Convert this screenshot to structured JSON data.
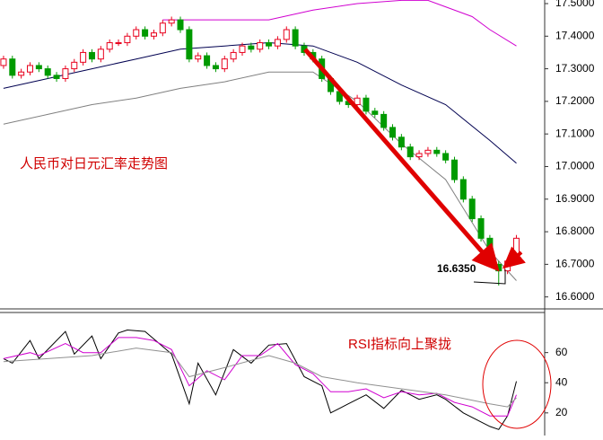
{
  "chart_data": [
    {
      "type": "candlestick",
      "title": "人民币对日元汇率走势图",
      "annotations": [
        {
          "text": "16.6350"
        }
      ],
      "up_color": "#e8001c",
      "down_color": "#009a00",
      "x": [
        0,
        1,
        2,
        3,
        4,
        5,
        6,
        7,
        8,
        9,
        10,
        11,
        12,
        13,
        14,
        15,
        16,
        17,
        18,
        19,
        20,
        21,
        22,
        23,
        24,
        25,
        26,
        27,
        28,
        29,
        30,
        31,
        32,
        33,
        34,
        35,
        36,
        37,
        38,
        39,
        40,
        41,
        42,
        43,
        44,
        45,
        46,
        47,
        48,
        49,
        50,
        51,
        52,
        53,
        54,
        55,
        56,
        57,
        58
      ],
      "open": [
        17.31,
        17.33,
        17.28,
        17.29,
        17.31,
        17.3,
        17.28,
        17.27,
        17.3,
        17.32,
        17.35,
        17.33,
        17.36,
        17.38,
        17.38,
        17.4,
        17.42,
        17.4,
        17.41,
        17.44,
        17.45,
        17.42,
        17.33,
        17.34,
        17.31,
        17.3,
        17.33,
        17.35,
        17.37,
        17.36,
        17.38,
        17.37,
        17.39,
        17.42,
        17.37,
        17.35,
        17.33,
        17.27,
        17.23,
        17.2,
        17.19,
        17.21,
        17.17,
        17.16,
        17.12,
        17.09,
        17.06,
        17.03,
        17.04,
        17.05,
        17.04,
        17.02,
        16.96,
        16.9,
        16.84,
        16.78,
        16.7,
        16.68,
        16.71
      ],
      "high": [
        17.34,
        17.34,
        17.3,
        17.32,
        17.32,
        17.31,
        17.29,
        17.31,
        17.33,
        17.36,
        17.36,
        17.37,
        17.39,
        17.39,
        17.41,
        17.43,
        17.43,
        17.42,
        17.45,
        17.46,
        17.46,
        17.43,
        17.35,
        17.35,
        17.32,
        17.34,
        17.36,
        17.38,
        17.38,
        17.39,
        17.39,
        17.4,
        17.43,
        17.43,
        17.38,
        17.36,
        17.34,
        17.28,
        17.24,
        17.21,
        17.22,
        17.22,
        17.18,
        17.17,
        17.13,
        17.1,
        17.07,
        17.05,
        17.06,
        17.06,
        17.05,
        17.03,
        16.97,
        16.91,
        16.85,
        16.79,
        16.71,
        16.72,
        16.79
      ],
      "low": [
        17.3,
        17.27,
        17.27,
        17.28,
        17.29,
        17.27,
        17.26,
        17.26,
        17.29,
        17.31,
        17.32,
        17.32,
        17.35,
        17.37,
        17.37,
        17.39,
        17.39,
        17.39,
        17.4,
        17.43,
        17.41,
        17.32,
        17.32,
        17.3,
        17.29,
        17.29,
        17.32,
        17.34,
        17.35,
        17.35,
        17.36,
        17.36,
        17.38,
        17.36,
        17.34,
        17.32,
        17.26,
        17.22,
        17.19,
        17.18,
        17.18,
        17.16,
        17.15,
        17.11,
        17.08,
        17.05,
        17.02,
        17.02,
        17.03,
        17.03,
        17.01,
        16.95,
        16.89,
        16.83,
        16.77,
        16.69,
        16.635,
        16.67,
        16.7
      ],
      "close": [
        17.33,
        17.28,
        17.29,
        17.31,
        17.3,
        17.28,
        17.27,
        17.3,
        17.32,
        17.35,
        17.33,
        17.36,
        17.38,
        17.38,
        17.4,
        17.42,
        17.4,
        17.41,
        17.44,
        17.45,
        17.42,
        17.33,
        17.34,
        17.31,
        17.3,
        17.33,
        17.35,
        17.37,
        17.36,
        17.38,
        17.37,
        17.39,
        17.42,
        17.37,
        17.35,
        17.33,
        17.27,
        17.23,
        17.2,
        17.19,
        17.21,
        17.17,
        17.16,
        17.12,
        17.09,
        17.06,
        17.03,
        17.04,
        17.05,
        17.04,
        17.02,
        16.96,
        16.9,
        16.84,
        16.78,
        16.7,
        16.68,
        16.71,
        16.78
      ],
      "lines": [
        {
          "color": "#d000d0",
          "x": [
            18,
            25,
            30,
            35,
            40,
            45,
            48,
            50,
            53,
            55,
            58
          ],
          "values": [
            17.45,
            17.45,
            17.45,
            17.48,
            17.5,
            17.51,
            17.51,
            17.49,
            17.46,
            17.42,
            17.37
          ]
        },
        {
          "color": "#000050",
          "x": [
            0,
            5,
            10,
            15,
            20,
            25,
            30,
            35,
            40,
            45,
            50,
            55,
            58
          ],
          "values": [
            17.24,
            17.27,
            17.3,
            17.33,
            17.36,
            17.37,
            17.38,
            17.37,
            17.32,
            17.25,
            17.19,
            17.08,
            17.01
          ]
        },
        {
          "color": "#808080",
          "x": [
            0,
            5,
            10,
            15,
            20,
            25,
            30,
            35,
            40,
            45,
            50,
            55,
            58
          ],
          "values": [
            17.13,
            17.16,
            17.19,
            17.21,
            17.24,
            17.26,
            17.29,
            17.29,
            17.2,
            17.07,
            16.96,
            16.74,
            16.65
          ]
        }
      ],
      "xlim": [
        -0.4,
        61.2
      ],
      "ylim": [
        16.566,
        17.511
      ],
      "yticks": [
        {
          "value": 16.6,
          "label": "16.6000"
        },
        {
          "value": 16.7,
          "label": "16.7000"
        },
        {
          "value": 16.8,
          "label": "16.8000"
        },
        {
          "value": 16.9,
          "label": "16.9000"
        },
        {
          "value": 17.0,
          "label": "17.0000"
        },
        {
          "value": 17.1,
          "label": "17.1000"
        },
        {
          "value": 17.2,
          "label": "17.2000"
        },
        {
          "value": 17.3,
          "label": "17.3000"
        },
        {
          "value": 17.4,
          "label": "17.4000"
        },
        {
          "value": 17.5,
          "label": "17.5000"
        }
      ]
    },
    {
      "type": "line",
      "annotations": [
        {
          "text": "RSI指标向上聚拢"
        }
      ],
      "series": [
        {
          "color": "#000000",
          "x": [
            0,
            1,
            3,
            4,
            7,
            8,
            10,
            11,
            13,
            14,
            16,
            19,
            21,
            22,
            24,
            26,
            28,
            30,
            32,
            34,
            36,
            37,
            39,
            41,
            43,
            45,
            47,
            49,
            50,
            52,
            55,
            56,
            57,
            58
          ],
          "values": [
            56,
            53,
            68,
            56,
            74,
            59,
            71,
            56,
            73,
            75,
            74,
            59,
            26,
            53,
            32,
            62,
            53,
            65,
            66,
            44,
            38,
            20,
            26,
            32,
            23,
            35,
            29,
            32,
            29,
            20,
            11,
            9,
            18,
            41
          ]
        },
        {
          "color": "#d000d0",
          "x": [
            0,
            3,
            4,
            7,
            9,
            11,
            13,
            15,
            17,
            19,
            21,
            23,
            25,
            27,
            29,
            31,
            33,
            35,
            37,
            39,
            41,
            43,
            45,
            47,
            49,
            51,
            53,
            55,
            57,
            58
          ],
          "values": [
            56,
            60,
            58,
            66,
            60,
            60,
            70,
            70,
            68,
            62,
            38,
            48,
            42,
            58,
            58,
            66,
            52,
            46,
            34,
            34,
            36,
            30,
            34,
            32,
            33,
            27,
            24,
            18,
            18,
            32
          ]
        },
        {
          "color": "#909090",
          "x": [
            0,
            5,
            10,
            15,
            19,
            21,
            25,
            30,
            33,
            36,
            40,
            45,
            50,
            55,
            57,
            58
          ],
          "values": [
            54,
            56,
            58,
            63,
            60,
            44,
            50,
            58,
            53,
            44,
            40,
            36,
            32,
            26,
            24,
            30
          ]
        }
      ],
      "xlim": [
        -0.4,
        61.2
      ],
      "ylim": [
        5,
        86
      ],
      "yticks": [
        20,
        40,
        60
      ]
    }
  ]
}
